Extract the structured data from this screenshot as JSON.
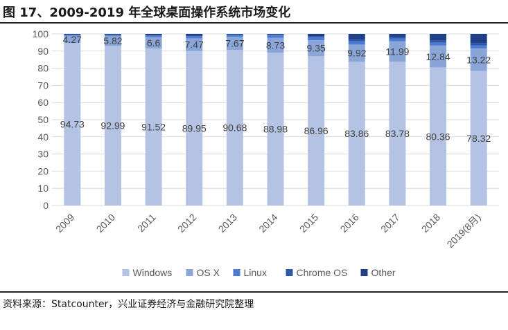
{
  "title": "图 17、2009-2019 年全球桌面操作系统市场变化",
  "source": "资料来源：Statcounter，兴业证券经济与金融研究院整理",
  "chart_data": {
    "type": "bar",
    "stacked": true,
    "categories": [
      "2009",
      "2010",
      "2011",
      "2012",
      "2013",
      "2014",
      "2015",
      "2016",
      "2017",
      "2018",
      "2019(8月)"
    ],
    "ylim": [
      0,
      100
    ],
    "yticks": [
      0,
      10,
      20,
      30,
      40,
      50,
      60,
      70,
      80,
      90,
      100
    ],
    "grid": true,
    "legend_position": "bottom",
    "series": [
      {
        "name": "Windows",
        "color": "#b4c2e3",
        "values": [
          94.73,
          92.99,
          91.52,
          89.95,
          90.68,
          88.98,
          86.96,
          83.86,
          83.78,
          80.36,
          78.32
        ],
        "labels": [
          "94.73",
          "92.99",
          "91.52",
          "89.95",
          "90.68",
          "88.98",
          "86.96",
          "83.86",
          "83.78",
          "80.36",
          "78.32"
        ]
      },
      {
        "name": "OS X",
        "color": "#8aa6d9",
        "values": [
          4.27,
          5.82,
          6.6,
          7.47,
          7.67,
          8.73,
          9.35,
          9.92,
          11.99,
          12.84,
          13.22
        ],
        "labels": [
          "4.27",
          "5.82",
          "6.6",
          "7.47",
          "7.67",
          "8.73",
          "9.35",
          "9.92",
          "11.99",
          "12.84",
          "13.22"
        ]
      },
      {
        "name": "Linux",
        "color": "#4d7bd1",
        "values": [
          0.6,
          0.7,
          1.0,
          1.4,
          1.2,
          1.6,
          1.8,
          2.0,
          1.6,
          1.7,
          1.8
        ]
      },
      {
        "name": "Chrome OS",
        "color": "#2f57a8",
        "values": [
          0,
          0,
          0,
          0,
          0,
          0.2,
          0.5,
          1.2,
          1.0,
          1.3,
          1.4
        ]
      },
      {
        "name": "Other",
        "color": "#1f3f86",
        "values": [
          0.4,
          0.49,
          0.88,
          1.18,
          0.45,
          0.49,
          1.39,
          3.02,
          1.63,
          3.8,
          5.26
        ]
      }
    ]
  }
}
